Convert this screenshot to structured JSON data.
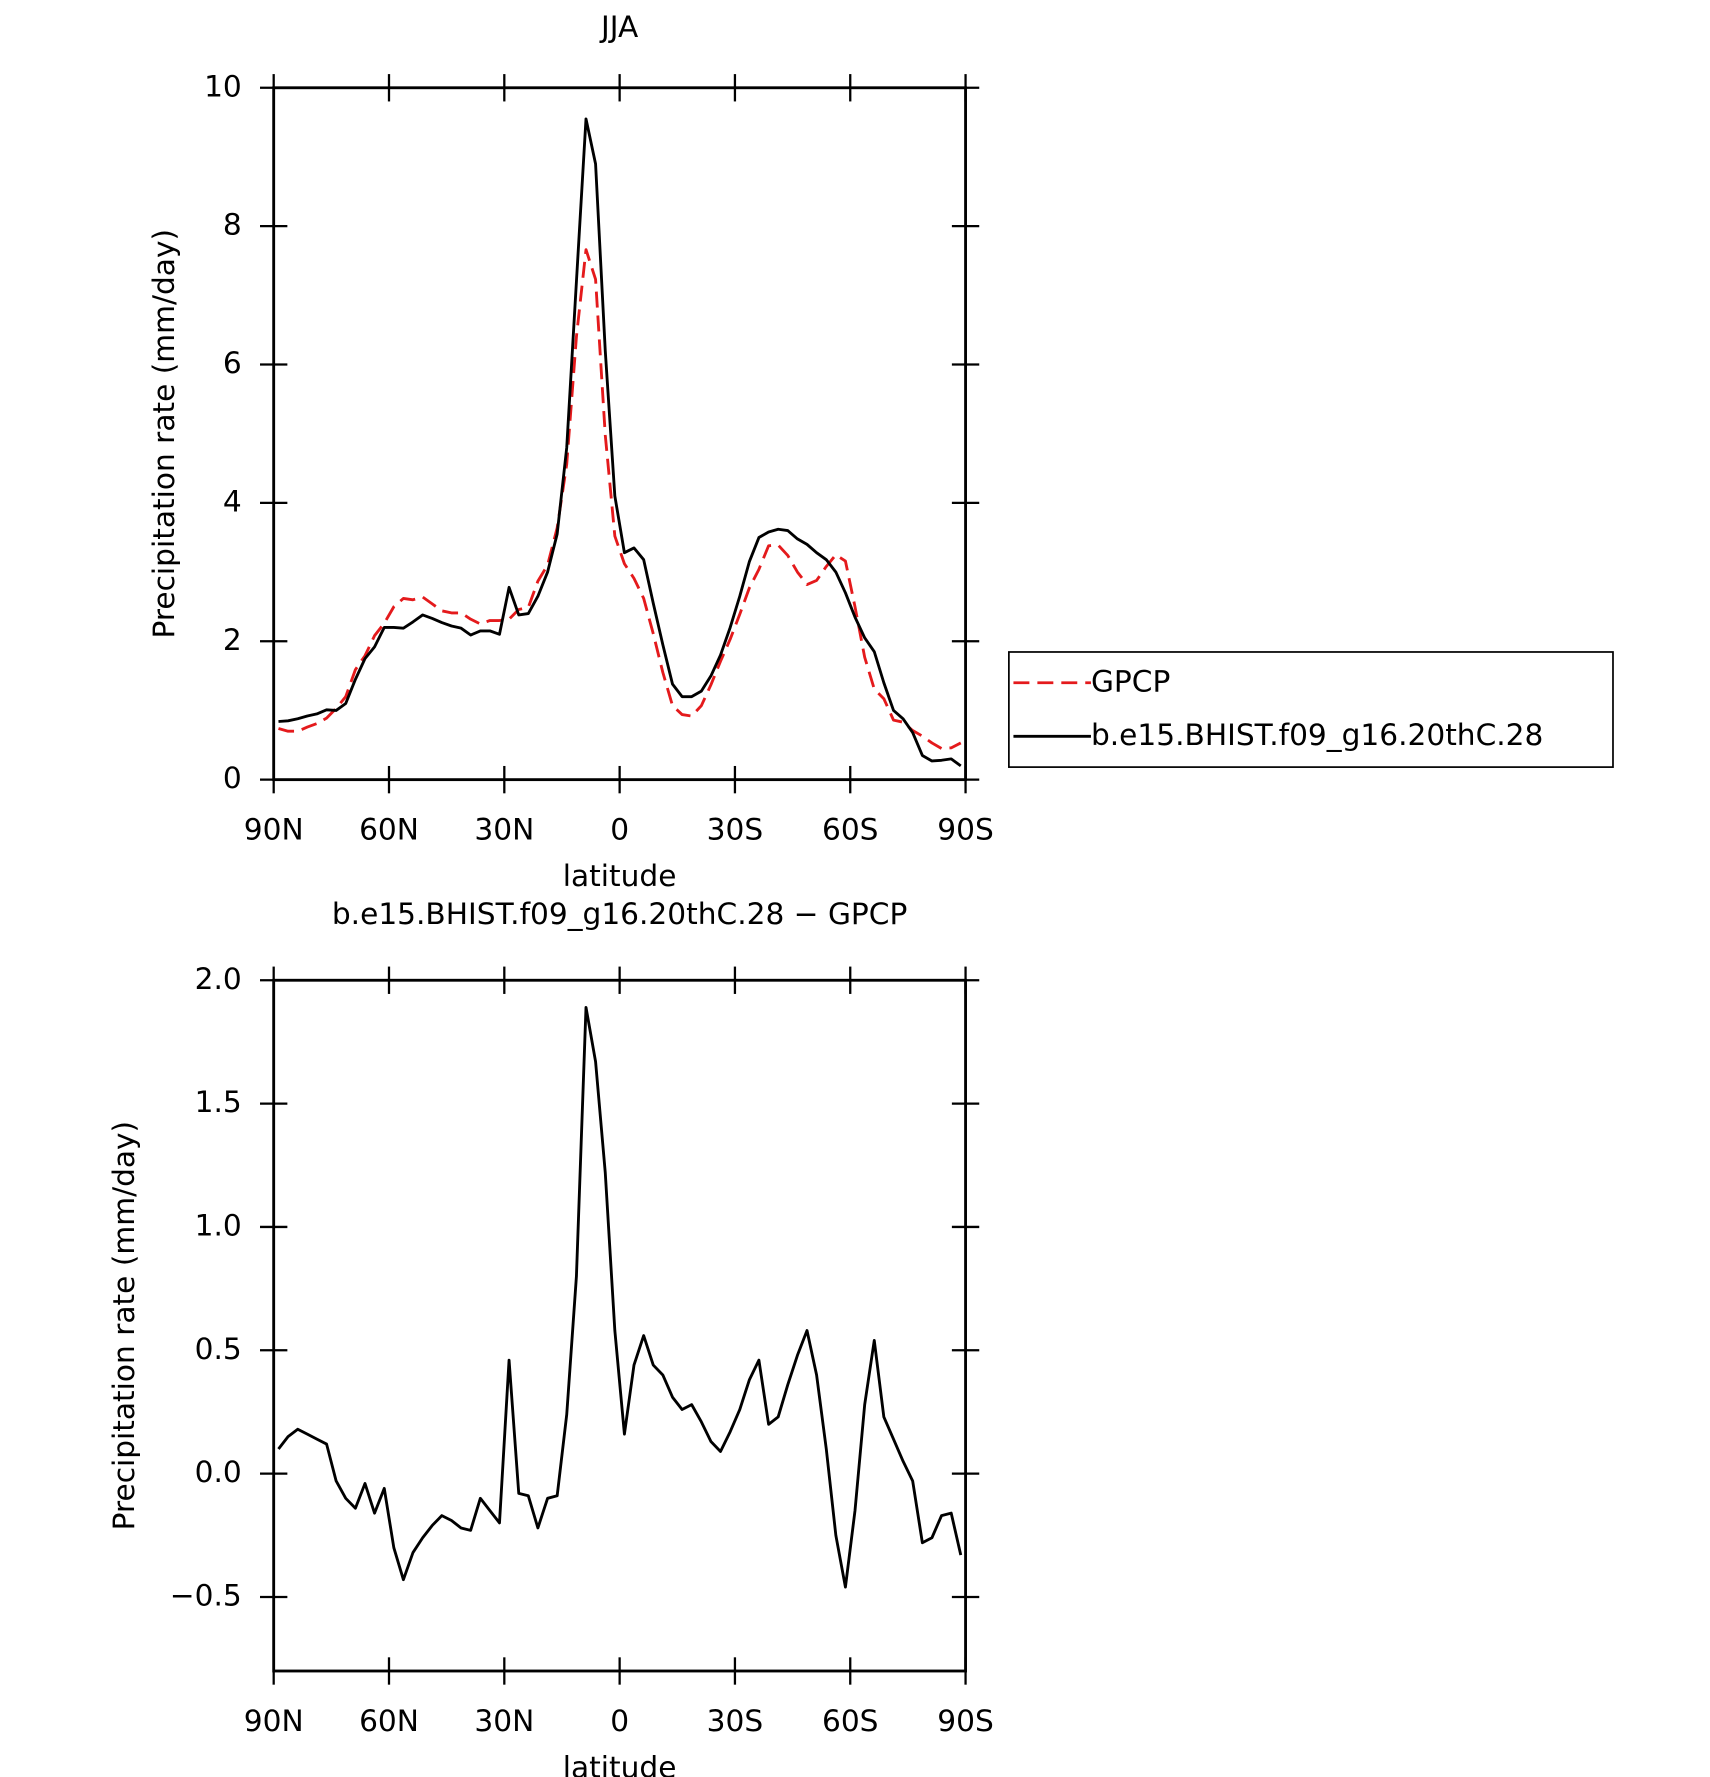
{
  "chart_data": [
    {
      "type": "line",
      "title": "JJA",
      "xlabel": "latitude",
      "ylabel": "Precipitation rate (mm/day)",
      "x": [
        88.75,
        86.25,
        83.75,
        81.25,
        78.75,
        76.25,
        73.75,
        71.25,
        68.75,
        66.25,
        63.75,
        61.25,
        58.75,
        56.25,
        53.75,
        51.25,
        48.75,
        46.25,
        43.75,
        41.25,
        38.75,
        36.25,
        33.75,
        31.25,
        28.75,
        26.25,
        23.75,
        21.25,
        18.75,
        16.25,
        13.75,
        11.25,
        8.75,
        6.25,
        3.75,
        1.25,
        -1.25,
        -3.75,
        -6.25,
        -8.75,
        -11.25,
        -13.75,
        -16.25,
        -18.75,
        -21.25,
        -23.75,
        -26.25,
        -28.75,
        -31.25,
        -33.75,
        -36.25,
        -38.75,
        -41.25,
        -43.75,
        -46.25,
        -48.75,
        -51.25,
        -53.75,
        -56.25,
        -58.75,
        -61.25,
        -63.75,
        -66.25,
        -68.75,
        -71.25,
        -73.75,
        -76.25,
        -78.75,
        -81.25,
        -83.75,
        -86.25,
        -88.75
      ],
      "series": [
        {
          "name": "GPCP",
          "color": "#e41a1c",
          "linestyle": "dashed",
          "values": [
            0.74,
            0.7,
            0.7,
            0.76,
            0.81,
            0.89,
            1.03,
            1.2,
            1.59,
            1.79,
            2.08,
            2.26,
            2.5,
            2.62,
            2.6,
            2.64,
            2.54,
            2.44,
            2.41,
            2.41,
            2.32,
            2.25,
            2.3,
            2.3,
            2.32,
            2.46,
            2.49,
            2.87,
            3.1,
            3.64,
            4.56,
            6.4,
            7.66,
            7.23,
            4.98,
            3.52,
            3.12,
            2.91,
            2.62,
            2.11,
            1.55,
            1.07,
            0.94,
            0.92,
            1.07,
            1.37,
            1.71,
            2.03,
            2.39,
            2.77,
            3.04,
            3.38,
            3.39,
            3.24,
            3.0,
            2.82,
            2.88,
            3.08,
            3.25,
            3.16,
            2.5,
            1.77,
            1.31,
            1.17,
            0.86,
            0.83,
            0.71,
            0.63,
            0.53,
            0.45,
            0.46,
            0.53
          ]
        },
        {
          "name": "b.e15.BHIST.f09_g16.20thC.28",
          "color": "#000000",
          "linestyle": "solid",
          "values": [
            0.84,
            0.85,
            0.88,
            0.92,
            0.95,
            1.01,
            1.0,
            1.1,
            1.45,
            1.75,
            1.92,
            2.2,
            2.2,
            2.19,
            2.28,
            2.38,
            2.33,
            2.27,
            2.22,
            2.19,
            2.09,
            2.15,
            2.15,
            2.1,
            2.78,
            2.38,
            2.4,
            2.65,
            3.0,
            3.55,
            4.8,
            7.2,
            9.55,
            8.9,
            6.2,
            4.1,
            3.28,
            3.35,
            3.18,
            2.55,
            1.95,
            1.38,
            1.2,
            1.2,
            1.28,
            1.5,
            1.8,
            2.2,
            2.65,
            3.15,
            3.5,
            3.58,
            3.62,
            3.6,
            3.48,
            3.4,
            3.28,
            3.18,
            3.0,
            2.7,
            2.35,
            2.05,
            1.85,
            1.4,
            1.0,
            0.88,
            0.68,
            0.35,
            0.27,
            0.28,
            0.3,
            0.2
          ]
        }
      ],
      "xlim": [
        90,
        -90
      ],
      "xticks": [
        {
          "value": 90,
          "label": "90N"
        },
        {
          "value": 60,
          "label": "60N"
        },
        {
          "value": 30,
          "label": "30N"
        },
        0,
        {
          "value": -30,
          "label": "30S"
        },
        {
          "value": -60,
          "label": "60S"
        },
        {
          "value": -90,
          "label": "90S"
        }
      ],
      "ylim": [
        0,
        10
      ],
      "yticks": [
        0,
        2,
        4,
        6,
        8,
        10
      ],
      "legend": "right"
    },
    {
      "type": "line",
      "title": "b.e15.BHIST.f09_g16.20thC.28 − GPCP",
      "xlabel": "latitude",
      "ylabel": "Precipitation rate (mm/day)",
      "x": [
        88.75,
        86.25,
        83.75,
        81.25,
        78.75,
        76.25,
        73.75,
        71.25,
        68.75,
        66.25,
        63.75,
        61.25,
        58.75,
        56.25,
        53.75,
        51.25,
        48.75,
        46.25,
        43.75,
        41.25,
        38.75,
        36.25,
        33.75,
        31.25,
        28.75,
        26.25,
        23.75,
        21.25,
        18.75,
        16.25,
        13.75,
        11.25,
        8.75,
        6.25,
        3.75,
        1.25,
        -1.25,
        -3.75,
        -6.25,
        -8.75,
        -11.25,
        -13.75,
        -16.25,
        -18.75,
        -21.25,
        -23.75,
        -26.25,
        -28.75,
        -31.25,
        -33.75,
        -36.25,
        -38.75,
        -41.25,
        -43.75,
        -46.25,
        -48.75,
        -51.25,
        -53.75,
        -56.25,
        -58.75,
        -61.25,
        -63.75,
        -66.25,
        -68.75,
        -71.25,
        -73.75,
        -76.25,
        -78.75,
        -81.25,
        -83.75,
        -86.25,
        -88.75
      ],
      "color": "#000000",
      "values": [
        0.1,
        0.15,
        0.18,
        0.16,
        0.14,
        0.12,
        -0.03,
        -0.1,
        -0.14,
        -0.04,
        -0.16,
        -0.06,
        -0.3,
        -0.43,
        -0.32,
        -0.26,
        -0.21,
        -0.17,
        -0.19,
        -0.22,
        -0.23,
        -0.1,
        -0.15,
        -0.2,
        0.46,
        -0.08,
        -0.09,
        -0.22,
        -0.1,
        -0.09,
        0.24,
        0.8,
        1.89,
        1.67,
        1.22,
        0.58,
        0.16,
        0.44,
        0.56,
        0.44,
        0.4,
        0.31,
        0.26,
        0.28,
        0.21,
        0.13,
        0.09,
        0.17,
        0.26,
        0.38,
        0.46,
        0.2,
        0.23,
        0.36,
        0.48,
        0.58,
        0.4,
        0.1,
        -0.25,
        -0.46,
        -0.15,
        0.28,
        0.54,
        0.23,
        0.14,
        0.05,
        -0.03,
        -0.28,
        -0.26,
        -0.17,
        -0.16,
        -0.33
      ],
      "xlim": [
        90,
        -90
      ],
      "xticks": [
        {
          "value": 90,
          "label": "90N"
        },
        {
          "value": 60,
          "label": "60N"
        },
        {
          "value": 30,
          "label": "30N"
        },
        0,
        {
          "value": -30,
          "label": "30S"
        },
        {
          "value": -60,
          "label": "60S"
        },
        {
          "value": -90,
          "label": "90S"
        }
      ],
      "ylim": [
        -0.8,
        2.0
      ],
      "yticks": [
        {
          "value": -0.5,
          "label": "−0.5"
        },
        {
          "value": 0,
          "label": "0.0"
        },
        0.5,
        {
          "value": 1,
          "label": "1.0"
        },
        1.5,
        {
          "value": 2,
          "label": "2.0"
        }
      ]
    }
  ]
}
